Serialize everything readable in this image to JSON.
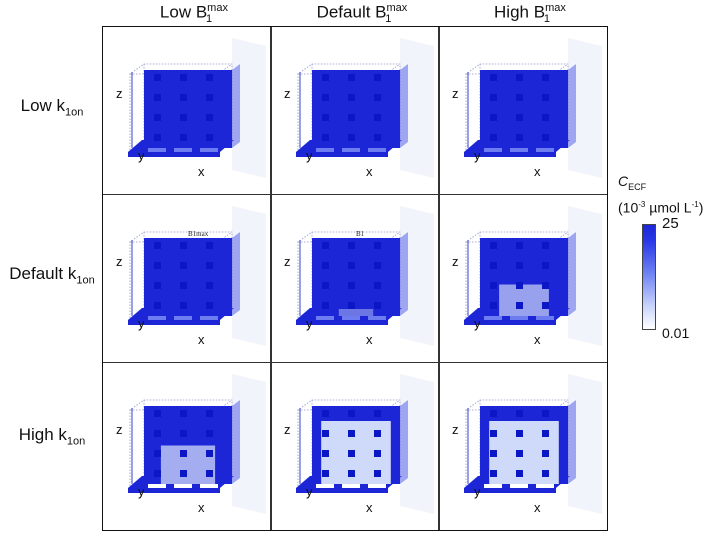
{
  "columns": [
    {
      "prefix": "Low B",
      "sup": "max",
      "sub": "1"
    },
    {
      "prefix": "Default B",
      "sup": "max",
      "sub": "1"
    },
    {
      "prefix": "High B",
      "sup": "max",
      "sub": "1"
    }
  ],
  "rows": [
    {
      "prefix": "Low k",
      "sub": "1on"
    },
    {
      "prefix": "Default k",
      "sub": "1on"
    },
    {
      "prefix": "High k",
      "sub": "1on"
    }
  ],
  "axes": {
    "x": "x",
    "y": "y",
    "z": "z"
  },
  "inset_labels": {
    "r1c0": "B1max",
    "r1c1": "B1"
  },
  "colorbar": {
    "symbol": "C",
    "symbol_sub": "ECF",
    "units_prefix": "(10",
    "units_exp": "-3",
    "units_mid": " µmol L",
    "units_exp2": "-1",
    "units_suffix": ")",
    "max_label": "25",
    "min_label": "0.01"
  },
  "colors": {
    "deep_blue": "#1c26d6",
    "light_blue": "#dde6fb",
    "border": "#111111"
  },
  "cells": [
    [
      {
        "light_level": 0.0
      },
      {
        "light_level": 0.0
      },
      {
        "light_level": 0.0
      }
    ],
    [
      {
        "light_level": 0.0
      },
      {
        "light_level": 0.1
      },
      {
        "light_level": 0.45
      }
    ],
    [
      {
        "light_level": 0.55
      },
      {
        "light_level": 0.9
      },
      {
        "light_level": 0.9
      }
    ]
  ]
}
